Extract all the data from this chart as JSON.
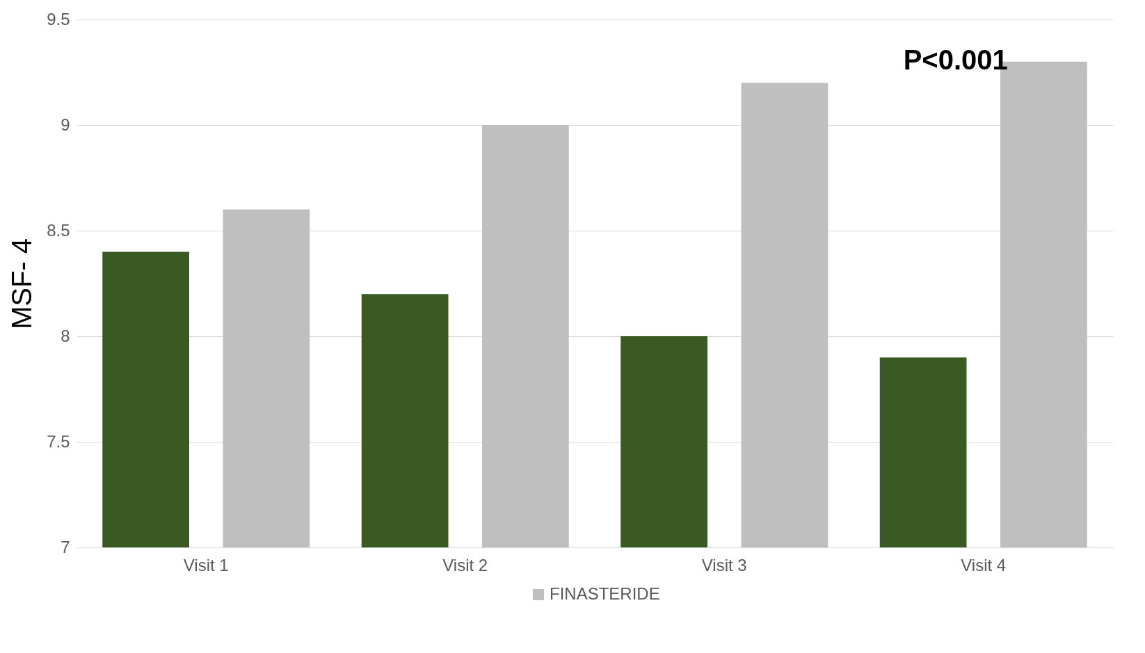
{
  "chart_data": {
    "type": "bar",
    "ylabel": "MSF- 4",
    "categories": [
      "Visit 1",
      "Visit 2",
      "Visit 3",
      "Visit 4"
    ],
    "series": [
      {
        "color": "#3a5a23",
        "values": [
          8.4,
          8.2,
          8.0,
          7.9
        ]
      },
      {
        "name": "FINASTERIDE",
        "color": "#bfbfbf",
        "values": [
          8.6,
          9.0,
          9.2,
          9.3
        ]
      }
    ],
    "ylim": [
      7,
      9.5
    ],
    "yticks": [
      7,
      7.5,
      8,
      8.5,
      9,
      9.5
    ],
    "grid": "y",
    "legend": "bottom",
    "annotations": [
      "P<0.001"
    ]
  }
}
